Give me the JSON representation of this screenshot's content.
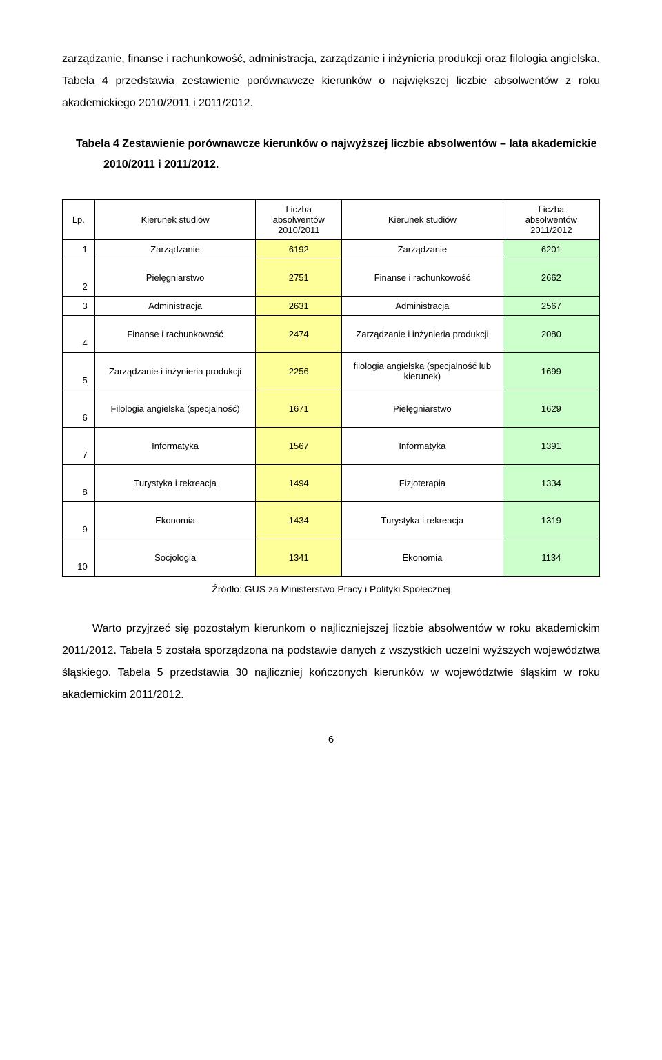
{
  "colors": {
    "col_c2_bg": "#ffff99",
    "col_c4_bg": "#ccffcc"
  },
  "para1": "zarządzanie, finanse i rachunkowość, administracja, zarządzanie i inżynieria produkcji oraz filologia angielska. Tabela 4 przedstawia zestawienie porównawcze kierunków o największej liczbie absolwentów z roku akademickiego 2010/2011 i 2011/2012.",
  "title": "Tabela 4 Zestawienie  porównawcze kierunków o najwyższej liczbie absolwentów – lata akademickie 2010/2011 i 2011/2012.",
  "table": {
    "headers": {
      "lp": "Lp.",
      "ks1": "Kierunek studiów",
      "la1": "Liczba\nabsolwentów\n2010/2011",
      "ks2": "Kierunek studiów",
      "la2": "Liczba\nabsolwentów\n2011/2012"
    },
    "rows": [
      {
        "lp": "1",
        "k1": "Zarządzanie",
        "v1": "6192",
        "k2": "Zarządzanie",
        "v2": "6201"
      },
      {
        "lp": "2",
        "k1": "Pielęgniarstwo",
        "v1": "2751",
        "k2": "Finanse i rachunkowość",
        "v2": "2662"
      },
      {
        "lp": "3",
        "k1": "Administracja",
        "v1": "2631",
        "k2": "Administracja",
        "v2": "2567"
      },
      {
        "lp": "4",
        "k1": "Finanse i rachunkowość",
        "v1": "2474",
        "k2": "Zarządzanie i inżynieria produkcji",
        "v2": "2080"
      },
      {
        "lp": "5",
        "k1": "Zarządzanie i inżynieria produkcji",
        "v1": "2256",
        "k2": "filologia angielska (specjalność lub kierunek)",
        "v2": "1699"
      },
      {
        "lp": "6",
        "k1": "Filologia angielska (specjalność)",
        "v1": "1671",
        "k2": "Pielęgniarstwo",
        "v2": "1629"
      },
      {
        "lp": "7",
        "k1": "Informatyka",
        "v1": "1567",
        "k2": "Informatyka",
        "v2": "1391"
      },
      {
        "lp": "8",
        "k1": "Turystyka i rekreacja",
        "v1": "1494",
        "k2": "Fizjoterapia",
        "v2": "1334"
      },
      {
        "lp": "9",
        "k1": "Ekonomia",
        "v1": "1434",
        "k2": "Turystyka i rekreacja",
        "v2": "1319"
      },
      {
        "lp": "10",
        "k1": "Socjologia",
        "v1": "1341",
        "k2": "Ekonomia",
        "v2": "1134"
      }
    ]
  },
  "source": "Źródło: GUS za Ministerstwo Pracy i Polityki Społecznej",
  "para2": "Warto przyjrzeć się pozostałym kierunkom o najliczniejszej liczbie absolwentów w roku akademickim 2011/2012. Tabela 5 została sporządzona na podstawie danych z wszystkich uczelni wyższych województwa śląskiego. Tabela 5 przedstawia 30 najliczniej kończonych kierunków w województwie śląskim w roku akademickim 2011/2012.",
  "page_number": "6"
}
